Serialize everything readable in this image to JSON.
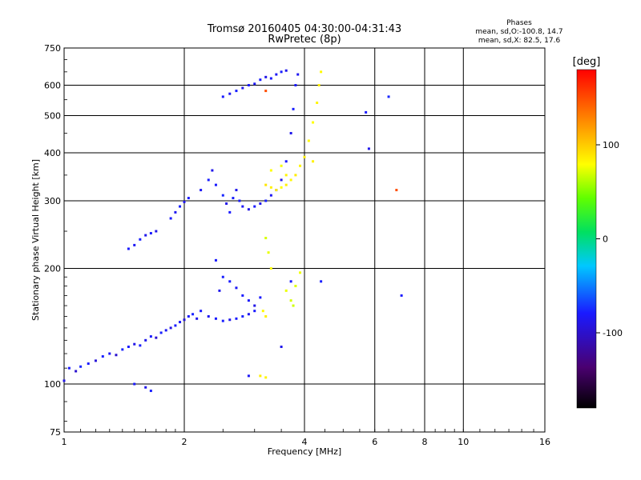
{
  "header": {
    "title": "Tromsø 20160405 04:30:00-04:31:43",
    "subtitle": "RwPretec (8p)",
    "stats_title": "Phases",
    "stats_o": "mean, sd,O:-100.8, 14.7",
    "stats_x": "mean, sd,X:  82.5, 17.6"
  },
  "colors": {
    "o_trace": "#2222ee",
    "x_trace": "#e8e800",
    "grid": "#000000"
  },
  "chart_data": {
    "type": "scatter",
    "title": "Tromsø 20160405 04:30:00-04:31:43",
    "subtitle": "RwPretec (8p)",
    "xlabel": "Frequency [MHz]",
    "ylabel": "Stationary phase Virtual Height [km]",
    "xscale": "log",
    "yscale": "log",
    "xlim": [
      1,
      16
    ],
    "ylim": [
      75,
      750
    ],
    "xticks": [
      1,
      2,
      4,
      6,
      8,
      10,
      16
    ],
    "yticks": [
      75,
      100,
      200,
      300,
      400,
      500,
      600,
      750
    ],
    "grid": true,
    "colorbar": {
      "label": "[deg]",
      "ticks": [
        100,
        0,
        -100
      ],
      "range": [
        -180,
        180
      ]
    },
    "series": [
      {
        "mode": "O",
        "points": [
          [
            1.0,
            102,
            -105
          ],
          [
            1.03,
            110,
            -100
          ],
          [
            1.07,
            108,
            -110
          ],
          [
            1.1,
            111,
            -95
          ],
          [
            1.15,
            113,
            -100
          ],
          [
            1.2,
            115,
            -108
          ],
          [
            1.25,
            118,
            -98
          ],
          [
            1.3,
            120,
            -102
          ],
          [
            1.35,
            119,
            -110
          ],
          [
            1.4,
            123,
            -96
          ],
          [
            1.45,
            125,
            -100
          ],
          [
            1.5,
            127,
            -105
          ],
          [
            1.55,
            126,
            -98
          ],
          [
            1.6,
            130,
            -104
          ],
          [
            1.65,
            133,
            -100
          ],
          [
            1.7,
            132,
            -110
          ],
          [
            1.75,
            136,
            -97
          ],
          [
            1.8,
            138,
            -102
          ],
          [
            1.85,
            140,
            -106
          ],
          [
            1.9,
            142,
            -99
          ],
          [
            1.95,
            145,
            -101
          ],
          [
            2.0,
            147,
            -108
          ],
          [
            2.05,
            150,
            -100
          ],
          [
            2.1,
            152,
            -96
          ],
          [
            2.15,
            148,
            -104
          ],
          [
            2.2,
            155,
            -100
          ],
          [
            2.3,
            150,
            -103
          ],
          [
            2.4,
            148,
            -100
          ],
          [
            2.5,
            146,
            -98
          ],
          [
            2.6,
            147,
            -104
          ],
          [
            2.7,
            148,
            -100
          ],
          [
            2.8,
            150,
            -97
          ],
          [
            2.9,
            152,
            -103
          ],
          [
            3.0,
            155,
            -100
          ],
          [
            1.45,
            225,
            -100
          ],
          [
            1.5,
            230,
            -102
          ],
          [
            1.55,
            238,
            -98
          ],
          [
            1.6,
            244,
            -104
          ],
          [
            1.65,
            247,
            -100
          ],
          [
            1.7,
            250,
            -105
          ],
          [
            1.85,
            270,
            -100
          ],
          [
            1.9,
            280,
            -103
          ],
          [
            1.95,
            290,
            -97
          ],
          [
            2.0,
            298,
            -104
          ],
          [
            2.05,
            305,
            -100
          ],
          [
            2.2,
            320,
            -102
          ],
          [
            2.3,
            340,
            -98
          ],
          [
            2.35,
            360,
            -104
          ],
          [
            2.4,
            330,
            -100
          ],
          [
            2.5,
            310,
            -95
          ],
          [
            2.55,
            295,
            -105
          ],
          [
            2.6,
            280,
            -100
          ],
          [
            2.65,
            305,
            -98
          ],
          [
            2.7,
            320,
            -104
          ],
          [
            2.75,
            300,
            -100
          ],
          [
            2.8,
            290,
            -102
          ],
          [
            2.9,
            285,
            -105
          ],
          [
            3.0,
            290,
            -100
          ],
          [
            3.1,
            295,
            -104
          ],
          [
            3.2,
            300,
            -98
          ],
          [
            3.3,
            310,
            -102
          ],
          [
            3.4,
            320,
            -100
          ],
          [
            3.5,
            340,
            -105
          ],
          [
            3.6,
            380,
            -100
          ],
          [
            3.7,
            450,
            -104
          ],
          [
            3.75,
            520,
            -98
          ],
          [
            3.8,
            600,
            -100
          ],
          [
            3.85,
            640,
            -103
          ],
          [
            2.5,
            560,
            -100
          ],
          [
            2.6,
            570,
            -103
          ],
          [
            2.7,
            580,
            -98
          ],
          [
            2.8,
            590,
            -104
          ],
          [
            2.9,
            600,
            -100
          ],
          [
            3.0,
            605,
            -102
          ],
          [
            3.1,
            620,
            -99
          ],
          [
            3.2,
            630,
            -105
          ],
          [
            3.3,
            625,
            -100
          ],
          [
            3.4,
            640,
            -102
          ],
          [
            3.5,
            650,
            -98
          ],
          [
            3.6,
            655,
            -104
          ],
          [
            2.4,
            210,
            -100
          ],
          [
            2.5,
            190,
            -98
          ],
          [
            2.45,
            175,
            -104
          ],
          [
            2.6,
            185,
            -100
          ],
          [
            2.7,
            178,
            -102
          ],
          [
            2.8,
            170,
            -99
          ],
          [
            2.9,
            165,
            -101
          ],
          [
            3.0,
            160,
            -105
          ],
          [
            3.1,
            168,
            -100
          ],
          [
            1.5,
            100,
            -100
          ],
          [
            1.6,
            98,
            -104
          ],
          [
            1.65,
            96,
            -98
          ],
          [
            2.9,
            105,
            -102
          ],
          [
            3.7,
            185,
            -100
          ],
          [
            3.5,
            125,
            -104
          ],
          [
            4.4,
            185,
            -98
          ],
          [
            5.7,
            510,
            -100
          ],
          [
            5.8,
            410,
            -104
          ],
          [
            6.5,
            560,
            -95
          ],
          [
            7.0,
            170,
            -100
          ]
        ]
      },
      {
        "mode": "X",
        "points": [
          [
            3.2,
            330,
            90
          ],
          [
            3.3,
            325,
            85
          ],
          [
            3.4,
            320,
            88
          ],
          [
            3.5,
            325,
            80
          ],
          [
            3.6,
            330,
            86
          ],
          [
            3.7,
            340,
            82
          ],
          [
            3.8,
            350,
            88
          ],
          [
            3.9,
            370,
            84
          ],
          [
            4.0,
            390,
            86
          ],
          [
            4.1,
            430,
            82
          ],
          [
            4.2,
            480,
            80
          ],
          [
            4.3,
            540,
            84
          ],
          [
            4.35,
            600,
            86
          ],
          [
            4.4,
            650,
            82
          ],
          [
            3.3,
            360,
            80
          ],
          [
            3.5,
            370,
            78
          ],
          [
            3.6,
            350,
            84
          ],
          [
            3.2,
            240,
            70
          ],
          [
            3.25,
            220,
            74
          ],
          [
            3.3,
            200,
            80
          ],
          [
            3.15,
            155,
            82
          ],
          [
            3.2,
            150,
            86
          ],
          [
            3.6,
            175,
            75
          ],
          [
            3.7,
            165,
            70
          ],
          [
            3.8,
            180,
            72
          ],
          [
            3.9,
            195,
            76
          ],
          [
            3.75,
            160,
            68
          ],
          [
            3.1,
            105,
            86
          ],
          [
            3.2,
            104,
            84
          ],
          [
            4.2,
            380,
            85
          ],
          [
            6.8,
            320,
            150
          ],
          [
            3.2,
            580,
            150
          ]
        ]
      }
    ]
  }
}
